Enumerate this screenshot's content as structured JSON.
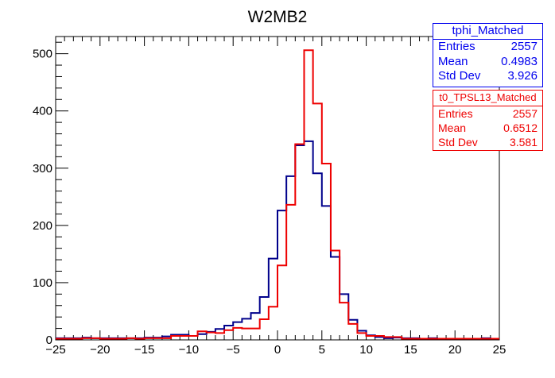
{
  "chart_data": {
    "type": "histogram",
    "title": "W2MB2",
    "xlim": [
      -25,
      25
    ],
    "ylim": [
      0,
      530
    ],
    "xticks": [
      -25,
      -20,
      -15,
      -10,
      -5,
      0,
      5,
      10,
      15,
      20,
      25
    ],
    "yticks": [
      0,
      100,
      200,
      300,
      400,
      500
    ],
    "bin_edges_start": -25,
    "bin_width": 1,
    "series": [
      {
        "name": "tphi_Matched",
        "color": "#00008b",
        "values": [
          3,
          3,
          3,
          4,
          3,
          3,
          3,
          3,
          3,
          3,
          4,
          4,
          6,
          9,
          9,
          7,
          10,
          14,
          19,
          25,
          31,
          37,
          47,
          75,
          142,
          226,
          286,
          340,
          347,
          291,
          234,
          145,
          80,
          35,
          16,
          8,
          5,
          3,
          4,
          3,
          3,
          2,
          3,
          2,
          2,
          2,
          2,
          2,
          3,
          2
        ]
      },
      {
        "name": "t0_TPSL13_Matched",
        "color": "#ee0000",
        "values": [
          2,
          2,
          2,
          3,
          3,
          2,
          2,
          2,
          3,
          2,
          3,
          3,
          3,
          7,
          7,
          7,
          15,
          13,
          12,
          17,
          21,
          20,
          20,
          36,
          58,
          130,
          236,
          342,
          506,
          413,
          308,
          156,
          65,
          28,
          12,
          7,
          7,
          5,
          5,
          2,
          2,
          2,
          2,
          2,
          2,
          2,
          2,
          2,
          2,
          2
        ]
      }
    ],
    "legend": [
      {
        "title": "tphi_Matched",
        "rows": [
          {
            "label": "Entries",
            "value": "2557"
          },
          {
            "label": "Mean",
            "value": "0.4983"
          },
          {
            "label": "Std Dev",
            "value": "3.926"
          }
        ]
      },
      {
        "title": "t0_TPSL13_Matched",
        "rows": [
          {
            "label": "Entries",
            "value": "2557"
          },
          {
            "label": "Mean",
            "value": "0.6512"
          },
          {
            "label": "Std Dev",
            "value": "3.581"
          }
        ]
      }
    ]
  }
}
